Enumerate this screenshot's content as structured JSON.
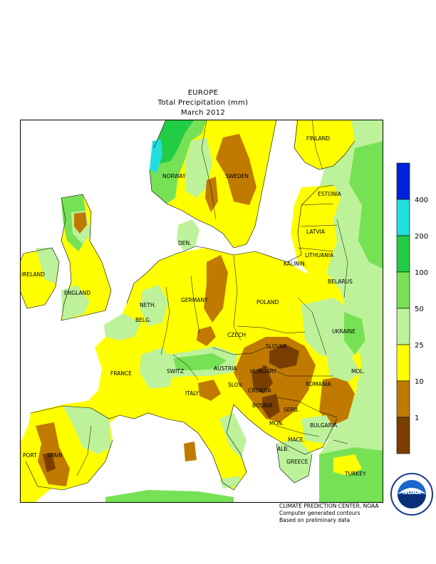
{
  "title": {
    "region": "EUROPE",
    "variable": "Total Precipitation (mm)",
    "period": "March 2012"
  },
  "legend": {
    "classes": [
      {
        "label": "400",
        "color": "#0022dd"
      },
      {
        "label": "200",
        "color": "#22dddd"
      },
      {
        "label": "100",
        "color": "#22cc44"
      },
      {
        "label": "50",
        "color": "#77e155"
      },
      {
        "label": "25",
        "color": "#bdf29a"
      },
      {
        "label": "10",
        "color": "#ffff00"
      },
      {
        "label": "1",
        "color": "#c07a00"
      },
      {
        "label": "",
        "color": "#7a3f00"
      }
    ]
  },
  "map": {
    "labels": {
      "finland": "FINLAND",
      "norway": "NORWAY",
      "sweden": "SWEDEN",
      "estonia": "ESTONIA",
      "latvia": "LATVIA",
      "lithuania": "LITHUANIA",
      "kaliningrad": "KALININ.",
      "belarus": "BELARUS",
      "den": "DEN.",
      "ireland": "IRELAND",
      "england": "ENGLAND",
      "neth": "NETH.",
      "belg": "BELG.",
      "germany": "GERMANY",
      "poland": "POLAND",
      "ukraine": "UKRAINE",
      "czech": "CZECH",
      "slovak": "SLOVAK",
      "mol": "MOL.",
      "france": "FRANCE",
      "switz": "SWITZ",
      "austria": "AUSTRIA",
      "hungary": "HUNGARY",
      "slov": "SLOV.",
      "croatia": "CROATIA",
      "romania": "ROMANIA",
      "italy": "ITALY",
      "bosnia": "BOSNIA",
      "serb": "SERB.",
      "bulgaria": "BULGARIA",
      "mon": "MON.",
      "port": "PORT",
      "spain": "SPAIN",
      "alb": "ALB.",
      "maced": "MACE.",
      "greece": "GREECE",
      "turkey": "TURKEY"
    }
  },
  "credits": {
    "line1": "CLIMATE PREDICTION CENTER, NOAA",
    "line2": "Computer generated contours",
    "line3": "Based on preliminary data"
  },
  "logo": {
    "text": "NOAA"
  }
}
